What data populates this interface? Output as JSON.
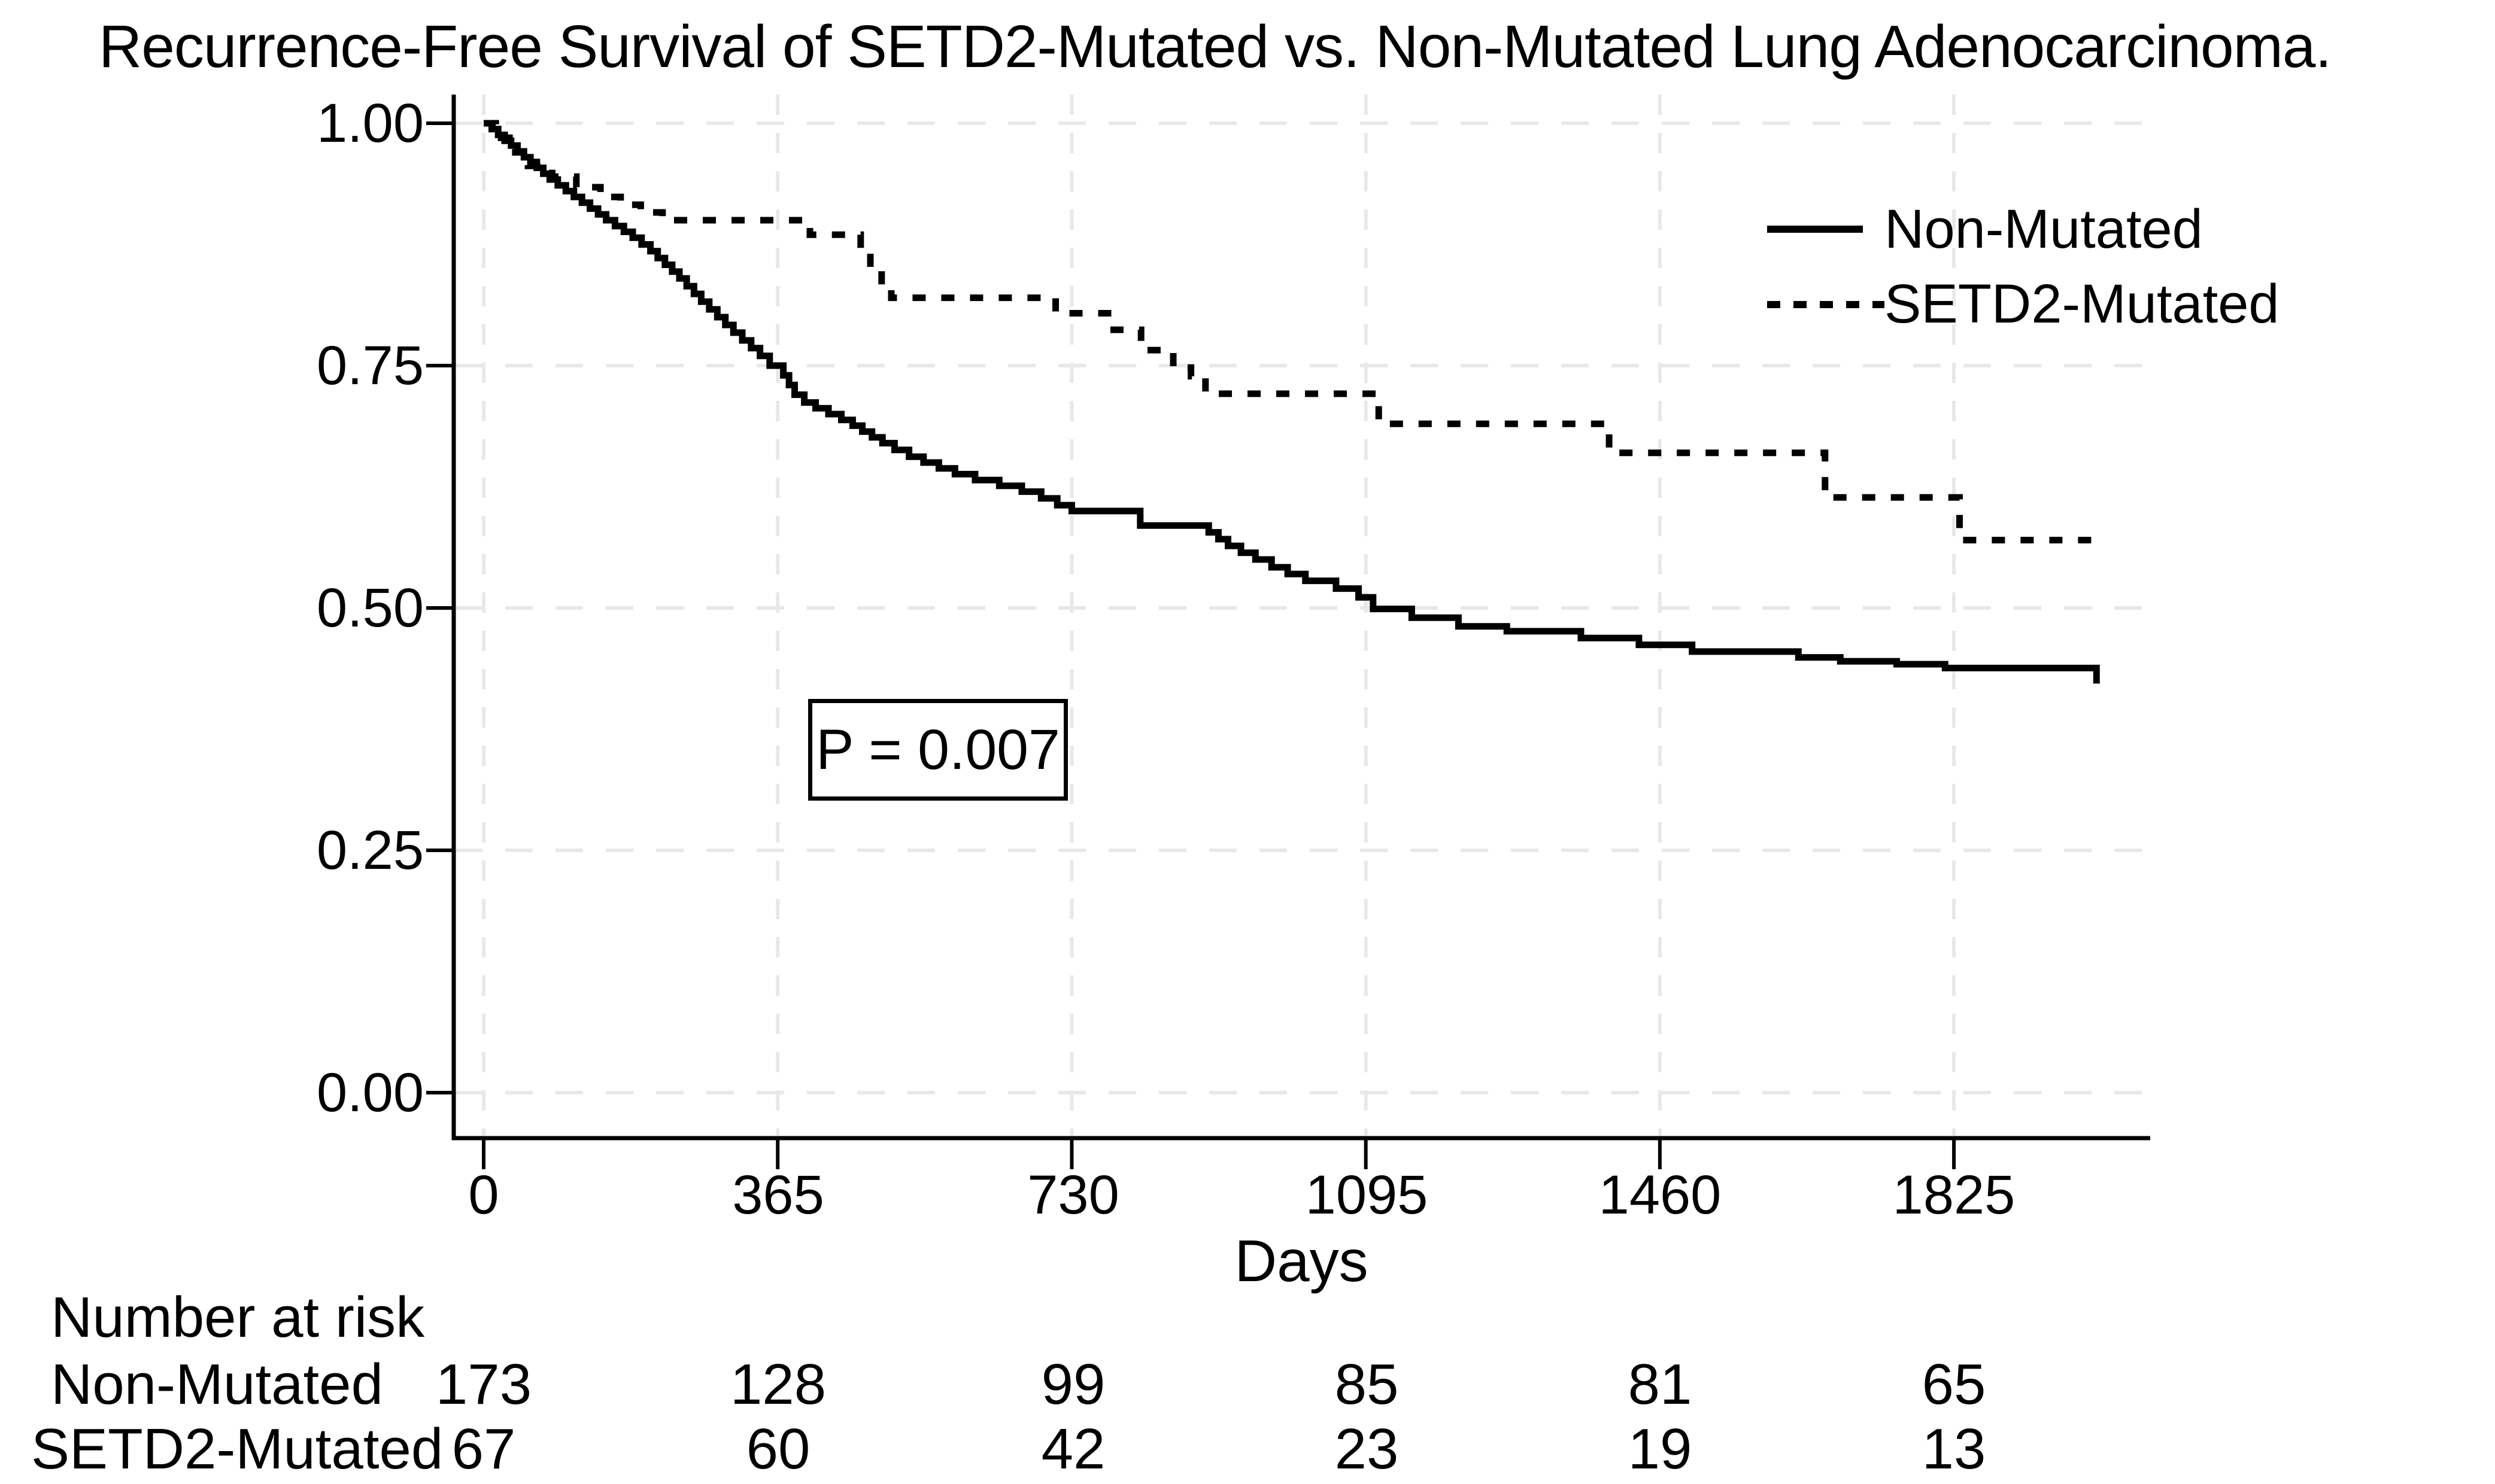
{
  "title": "Recurrence-Free Survival of SETD2-Mutated vs. Non-Mutated Lung Adenocarcinoma.",
  "legend": {
    "items": [
      {
        "label": "Non-Mutated",
        "style": "solid"
      },
      {
        "label": "SETD2-Mutated",
        "style": "dotted"
      }
    ]
  },
  "annotation": {
    "p_value_label": "P = 0.007"
  },
  "axes": {
    "xlabel": "Days",
    "x_ticks": [
      "0",
      "365",
      "730",
      "1095",
      "1460",
      "1825"
    ],
    "y_ticks": [
      "1.00",
      "0.75",
      "0.50",
      "0.25",
      "0.00"
    ]
  },
  "risk_table": {
    "header": "Number at risk",
    "rows": [
      {
        "label": "Non-Mutated",
        "counts": [
          "173",
          "128",
          "99",
          "85",
          "81",
          "65"
        ]
      },
      {
        "label": "SETD2-Mutated",
        "counts": [
          "67",
          "60",
          "42",
          "23",
          "19",
          "13"
        ]
      }
    ]
  },
  "chart_data": {
    "type": "line",
    "subtype": "kaplan-meier-step",
    "title": "Recurrence-Free Survival of SETD2-Mutated vs. Non-Mutated Lung Adenocarcinoma.",
    "xlabel": "Days",
    "ylabel": "",
    "xlim": [
      0,
      2056
    ],
    "ylim": [
      0.0,
      1.0
    ],
    "x_ticks": [
      0,
      365,
      730,
      1095,
      1460,
      1825
    ],
    "y_ticks": [
      1.0,
      0.75,
      0.5,
      0.25,
      0.0
    ],
    "grid": true,
    "grid_style": "light-dashed",
    "legend_position": "upper right",
    "p_value": 0.007,
    "line_color": "#000000",
    "grid_color": "#e8e8e8",
    "series": [
      {
        "name": "Non-Mutated",
        "style": "solid",
        "step": "post",
        "points": [
          [
            0,
            1.0
          ],
          [
            10,
            0.994
          ],
          [
            18,
            0.988
          ],
          [
            26,
            0.982
          ],
          [
            34,
            0.977
          ],
          [
            42,
            0.971
          ],
          [
            50,
            0.965
          ],
          [
            58,
            0.96
          ],
          [
            66,
            0.954
          ],
          [
            74,
            0.948
          ],
          [
            82,
            0.942
          ],
          [
            92,
            0.936
          ],
          [
            102,
            0.93
          ],
          [
            112,
            0.924
          ],
          [
            122,
            0.918
          ],
          [
            132,
            0.912
          ],
          [
            142,
            0.906
          ],
          [
            152,
            0.9
          ],
          [
            163,
            0.894
          ],
          [
            174,
            0.888
          ],
          [
            185,
            0.882
          ],
          [
            196,
            0.875
          ],
          [
            207,
            0.868
          ],
          [
            216,
            0.861
          ],
          [
            225,
            0.854
          ],
          [
            234,
            0.847
          ],
          [
            243,
            0.84
          ],
          [
            252,
            0.832
          ],
          [
            261,
            0.824
          ],
          [
            270,
            0.816
          ],
          [
            280,
            0.808
          ],
          [
            290,
            0.8
          ],
          [
            300,
            0.792
          ],
          [
            310,
            0.784
          ],
          [
            321,
            0.776
          ],
          [
            332,
            0.768
          ],
          [
            343,
            0.76
          ],
          [
            355,
            0.75
          ],
          [
            372,
            0.74
          ],
          [
            379,
            0.73
          ],
          [
            386,
            0.72
          ],
          [
            398,
            0.712
          ],
          [
            412,
            0.706
          ],
          [
            428,
            0.7
          ],
          [
            444,
            0.694
          ],
          [
            458,
            0.688
          ],
          [
            470,
            0.682
          ],
          [
            482,
            0.676
          ],
          [
            495,
            0.67
          ],
          [
            510,
            0.663
          ],
          [
            528,
            0.656
          ],
          [
            546,
            0.65
          ],
          [
            565,
            0.644
          ],
          [
            585,
            0.638
          ],
          [
            610,
            0.632
          ],
          [
            640,
            0.626
          ],
          [
            668,
            0.62
          ],
          [
            692,
            0.613
          ],
          [
            712,
            0.606
          ],
          [
            730,
            0.6
          ],
          [
            815,
            0.585
          ],
          [
            900,
            0.578
          ],
          [
            912,
            0.571
          ],
          [
            924,
            0.564
          ],
          [
            940,
            0.557
          ],
          [
            958,
            0.55
          ],
          [
            978,
            0.542
          ],
          [
            998,
            0.535
          ],
          [
            1020,
            0.528
          ],
          [
            1058,
            0.52
          ],
          [
            1086,
            0.511
          ],
          [
            1104,
            0.499
          ],
          [
            1152,
            0.49
          ],
          [
            1210,
            0.481
          ],
          [
            1270,
            0.476
          ],
          [
            1362,
            0.469
          ],
          [
            1434,
            0.462
          ],
          [
            1500,
            0.455
          ],
          [
            1632,
            0.449
          ],
          [
            1684,
            0.445
          ],
          [
            1754,
            0.442
          ],
          [
            1814,
            0.438
          ],
          [
            2002,
            0.422
          ]
        ]
      },
      {
        "name": "SETD2-Mutated",
        "style": "dotted",
        "step": "post",
        "points": [
          [
            0,
            1.0
          ],
          [
            15,
            0.985
          ],
          [
            32,
            0.97
          ],
          [
            55,
            0.956
          ],
          [
            85,
            0.945
          ],
          [
            115,
            0.934
          ],
          [
            145,
            0.924
          ],
          [
            170,
            0.916
          ],
          [
            195,
            0.908
          ],
          [
            222,
            0.9
          ],
          [
            405,
            0.885
          ],
          [
            468,
            0.867
          ],
          [
            480,
            0.849
          ],
          [
            494,
            0.832
          ],
          [
            506,
            0.82
          ],
          [
            710,
            0.804
          ],
          [
            782,
            0.787
          ],
          [
            816,
            0.766
          ],
          [
            856,
            0.748
          ],
          [
            878,
            0.739
          ],
          [
            896,
            0.721
          ],
          [
            1111,
            0.69
          ],
          [
            1397,
            0.66
          ],
          [
            1665,
            0.614
          ],
          [
            1832,
            0.57
          ],
          [
            1996,
            0.57
          ]
        ]
      }
    ],
    "risk_table": {
      "header": "Number at risk",
      "times": [
        0,
        365,
        730,
        1095,
        1460,
        1825
      ],
      "groups": [
        {
          "name": "Non-Mutated",
          "at_risk": [
            173,
            128,
            99,
            85,
            81,
            65
          ]
        },
        {
          "name": "SETD2-Mutated",
          "at_risk": [
            67,
            60,
            42,
            23,
            19,
            13
          ]
        }
      ]
    }
  }
}
